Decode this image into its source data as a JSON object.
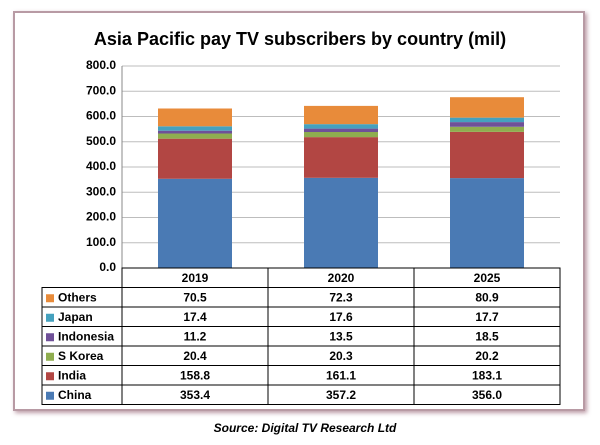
{
  "chart_data": {
    "type": "stacked-bar-table",
    "title": "Asia Pacific pay TV subscribers by country (mil)",
    "source": "Source: Digital TV Research Ltd",
    "categories": [
      "2019",
      "2020",
      "2025"
    ],
    "series": [
      {
        "name": "China",
        "color": "#4a7ab4",
        "values": [
          353.4,
          357.2,
          356.0
        ],
        "value_labels": [
          "353.4",
          "357.2",
          "356.0"
        ]
      },
      {
        "name": "India",
        "color": "#b24643",
        "values": [
          158.8,
          161.1,
          183.1
        ],
        "value_labels": [
          "158.8",
          "161.1",
          "183.1"
        ]
      },
      {
        "name": "S Korea",
        "color": "#8fad4f",
        "values": [
          20.4,
          20.3,
          20.2
        ],
        "value_labels": [
          "20.4",
          "20.3",
          "20.2"
        ]
      },
      {
        "name": "Indonesia",
        "color": "#6f5098",
        "values": [
          11.2,
          13.5,
          18.5
        ],
        "value_labels": [
          "11.2",
          "13.5",
          "18.5"
        ]
      },
      {
        "name": "Japan",
        "color": "#45a1be",
        "values": [
          17.4,
          17.6,
          17.7
        ],
        "value_labels": [
          "17.4",
          "17.6",
          "17.7"
        ]
      },
      {
        "name": "Others",
        "color": "#e88b3a",
        "values": [
          70.5,
          72.3,
          80.9
        ],
        "value_labels": [
          "70.5",
          "72.3",
          "80.9"
        ]
      }
    ],
    "ylim": [
      0,
      800
    ],
    "yticks": [
      {
        "value": 0,
        "label": "0.0"
      },
      {
        "value": 100,
        "label": "100.0"
      },
      {
        "value": 200,
        "label": "200.0"
      },
      {
        "value": 300,
        "label": "300.0"
      },
      {
        "value": 400,
        "label": "400.0"
      },
      {
        "value": 500,
        "label": "500.0"
      },
      {
        "value": 600,
        "label": "600.0"
      },
      {
        "value": 700,
        "label": "700.0"
      },
      {
        "value": 800,
        "label": "800.0"
      }
    ],
    "grid": true
  }
}
